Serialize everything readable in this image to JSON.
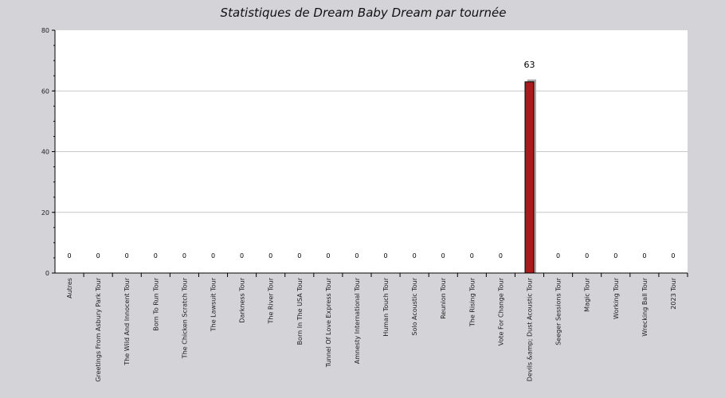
{
  "chart_data": {
    "type": "bar",
    "title": "Statistiques de Dream Baby Dream par tournée",
    "xlabel": "",
    "ylabel": "",
    "ylim": [
      0,
      80
    ],
    "yticks": [
      0,
      20,
      40,
      60,
      80
    ],
    "grid": true,
    "categories": [
      "Autres",
      "Greetings From Asbury Park Tour",
      "The Wild And Innocent Tour",
      "Born To Run Tour",
      "The Chicken Scratch Tour",
      "The Lawsuit Tour",
      "Darkness Tour",
      "The River Tour",
      "Born In The USA Tour",
      "Tunnel Of Love Express Tour",
      "Amnesty International Tour",
      "Human Touch Tour",
      "Solo Acoustic Tour",
      "Reunion Tour",
      "The Rising Tour",
      "Vote For Change Tour",
      "Devils &amp; Dust Acoustic Tour",
      "Seeger Sessions Tour",
      "Magic Tour",
      "Working Tour",
      "Wrecking Ball Tour",
      "2023 Tour"
    ],
    "values": [
      0,
      0,
      0,
      0,
      0,
      0,
      0,
      0,
      0,
      0,
      0,
      0,
      0,
      0,
      0,
      0,
      63,
      0,
      0,
      0,
      0,
      0
    ],
    "colors": {
      "bar": "#aa1a1a",
      "bar_shadow": "#a9a9a9",
      "plot_bg": "#ffffff",
      "page_bg": "#d4d3d8",
      "grid": "#c8c8c8"
    }
  }
}
